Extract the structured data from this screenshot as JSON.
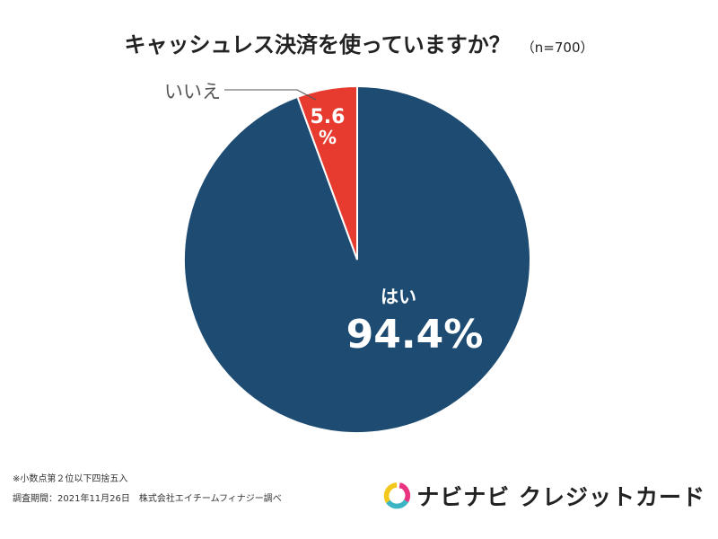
{
  "title": "キャッシュレス決済を使っていますか？",
  "sample_size": "（n=700）",
  "chart_data": {
    "type": "pie",
    "title": "キャッシュレス決済を使っていますか？",
    "slices": [
      {
        "label": "はい",
        "value": 94.4,
        "display": "94.4%",
        "color": "#1d4b72"
      },
      {
        "label": "いいえ",
        "value": 5.6,
        "display_number": "5.6",
        "display_unit": "%",
        "color": "#e63b2e"
      }
    ],
    "start_angle": "12 o'clock",
    "direction": "counterclockwise from top for いいえ"
  },
  "footnotes": {
    "rounding": "※小数点第２位以下四捨五入",
    "survey": "調査期間：2021年11月26日　株式会社エイチームフィナジー調べ"
  },
  "brand": {
    "name": "ナビナビ クレジットカード",
    "logo_icon": "navinavi-logo-icon",
    "logo_colors": [
      "#f2c81c",
      "#e9347f",
      "#3bb5c4"
    ]
  }
}
